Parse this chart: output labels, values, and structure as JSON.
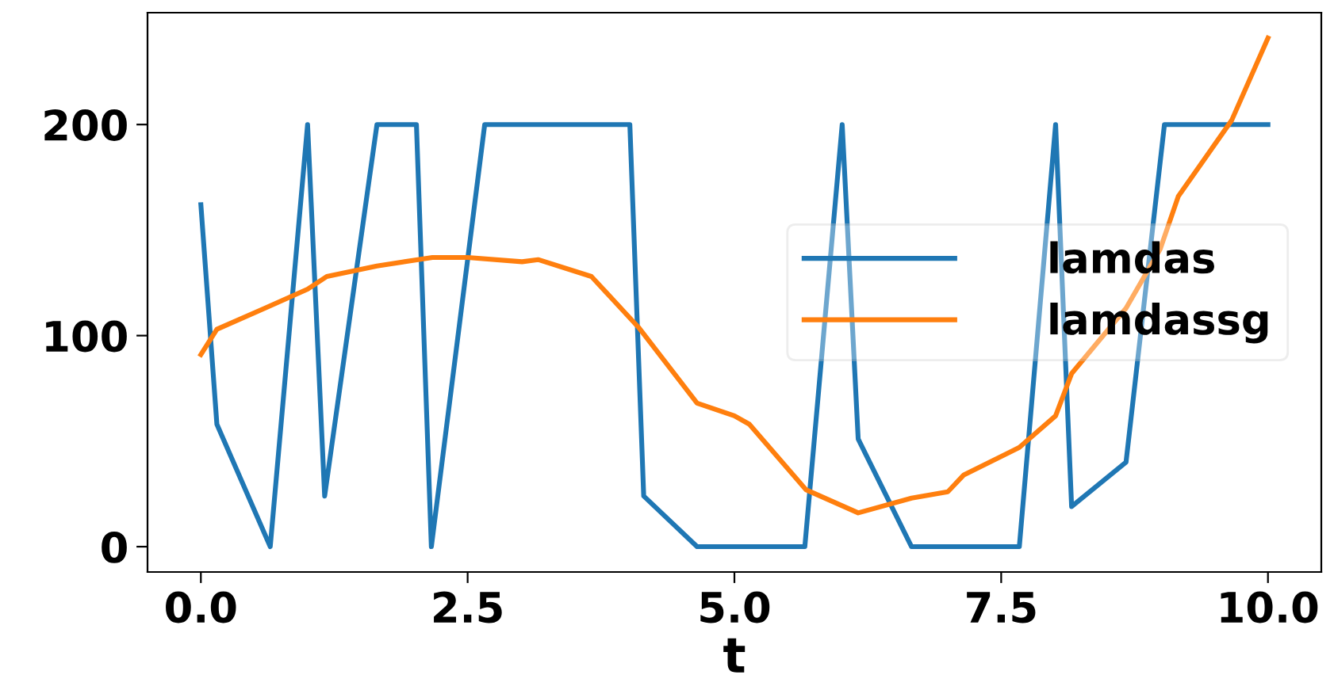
{
  "chart_data": {
    "type": "line",
    "xlabel": "t",
    "xlim": [
      -0.5,
      10.5
    ],
    "xticks": [
      {
        "value": 0,
        "label": "0.0"
      },
      {
        "value": 2.5,
        "label": "2.5"
      },
      {
        "value": 5,
        "label": "5.0"
      },
      {
        "value": 7.5,
        "label": "7.5"
      },
      {
        "value": 10,
        "label": "10.0"
      }
    ],
    "ylim": [
      -12,
      253
    ],
    "yticks": [
      0,
      100,
      200
    ],
    "grid": false,
    "legend": "right",
    "series": [
      {
        "name": "lamdas",
        "color": "#1f77b4",
        "x": [
          0,
          0.15,
          0.65,
          1.0,
          1.16,
          1.65,
          2.02,
          2.16,
          2.66,
          4.02,
          4.15,
          4.65,
          5.66,
          6.01,
          6.16,
          6.66,
          7.67,
          8.01,
          8.16,
          8.67,
          9.03,
          10.0
        ],
        "values": [
          162,
          58,
          0,
          200,
          24,
          200,
          200,
          0,
          200,
          200,
          24,
          0,
          0,
          200,
          51,
          0,
          0,
          200,
          19,
          40,
          200,
          200
        ]
      },
      {
        "name": "lamdassg",
        "color": "#ff7f0e",
        "x": [
          0,
          0.15,
          0.6,
          1.0,
          1.18,
          1.65,
          2.17,
          2.5,
          3.01,
          3.16,
          3.66,
          4.1,
          4.65,
          5.0,
          5.14,
          5.67,
          6.16,
          6.66,
          7.0,
          7.15,
          7.67,
          8.01,
          8.16,
          8.67,
          8.99,
          9.16,
          9.66,
          10.0
        ],
        "values": [
          91,
          103,
          113,
          122,
          128,
          133,
          137,
          137,
          135,
          136,
          128,
          104,
          68,
          62,
          58,
          27,
          16,
          23,
          26,
          34,
          47,
          62,
          82,
          113,
          141,
          166,
          202,
          241
        ]
      }
    ]
  }
}
